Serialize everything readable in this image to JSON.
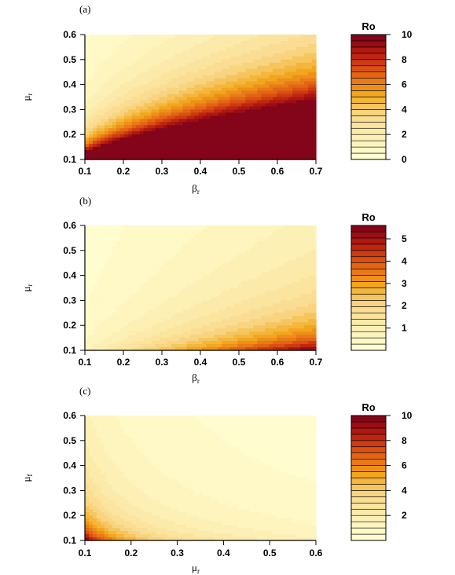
{
  "chart_data": [
    {
      "type": "heatmap",
      "panel_label": "(a)",
      "xlabel_main": "β",
      "xlabel_sub": "r",
      "ylabel_main": "μ",
      "ylabel_sub": "r",
      "xlim": [
        0.1,
        0.7
      ],
      "ylim": [
        0.1,
        0.6
      ],
      "x_ticks": [
        "0.1",
        "0.2",
        "0.3",
        "0.4",
        "0.5",
        "0.6",
        "0.7"
      ],
      "y_ticks": [
        "0.1",
        "0.2",
        "0.3",
        "0.4",
        "0.5",
        "0.6"
      ],
      "colorbar": {
        "title": "Ro",
        "range": [
          0,
          10
        ],
        "tick_labels": [
          "0",
          "2",
          "4",
          "6",
          "8",
          "10"
        ],
        "tick_values": [
          0,
          2,
          4,
          6,
          8,
          10
        ]
      },
      "z_model": "Ro = 1.6 * x / y^2"
    },
    {
      "type": "heatmap",
      "panel_label": "(b)",
      "xlabel_main": "β",
      "xlabel_sub": "r",
      "ylabel_main": "μ",
      "ylabel_sub": "r",
      "xlim": [
        0.1,
        0.7
      ],
      "ylim": [
        0.1,
        0.6
      ],
      "x_ticks": [
        "0.1",
        "0.2",
        "0.3",
        "0.4",
        "0.5",
        "0.6",
        "0.7"
      ],
      "y_ticks": [
        "0.1",
        "0.2",
        "0.3",
        "0.4",
        "0.5",
        "0.6"
      ],
      "colorbar": {
        "title": "Ro",
        "range": [
          0,
          5.6
        ],
        "tick_labels": [
          "1",
          "2",
          "3",
          "4",
          "5"
        ],
        "tick_values": [
          1,
          2,
          3,
          4,
          5
        ]
      },
      "z_model": "Ro = 0.81 * x / y"
    },
    {
      "type": "heatmap",
      "panel_label": "(c)",
      "xlabel_main": "μ",
      "xlabel_sub": "r",
      "ylabel_main": "μ",
      "ylabel_sub": "f",
      "xlim": [
        0.1,
        0.6
      ],
      "ylim": [
        0.1,
        0.6
      ],
      "x_ticks": [
        "0.1",
        "0.2",
        "0.3",
        "0.4",
        "0.5",
        "0.6"
      ],
      "y_ticks": [
        "0.1",
        "0.2",
        "0.3",
        "0.4",
        "0.5",
        "0.6"
      ],
      "colorbar": {
        "title": "Ro",
        "range": [
          0,
          10
        ],
        "tick_labels": [
          "2",
          "4",
          "6",
          "8",
          "10"
        ],
        "tick_values": [
          2,
          4,
          6,
          8,
          10
        ]
      },
      "z_model": "Ro = 0.1 / (x * y)"
    }
  ],
  "colors": {
    "low": "#FFFFD4",
    "mid_light": "#F9D98A",
    "mid": "#F2A81E",
    "mid_dark": "#E05A12",
    "high": "#7A001C"
  }
}
